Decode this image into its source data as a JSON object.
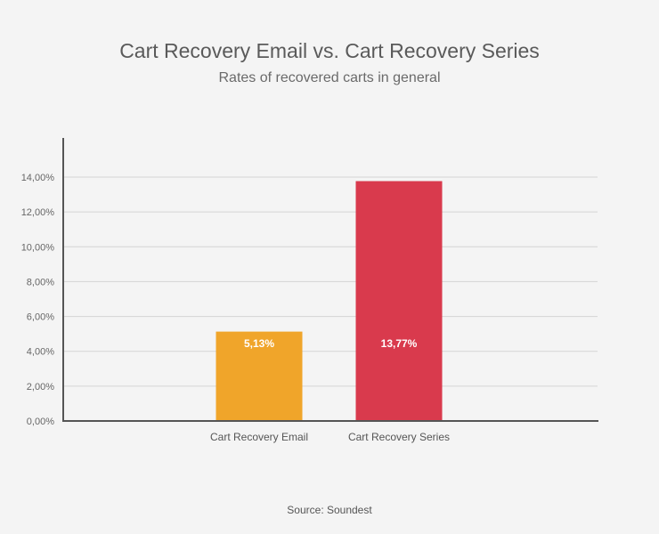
{
  "chart_data": {
    "type": "bar",
    "title": "Cart Recovery Email vs. Cart Recovery Series",
    "subtitle": "Rates of recovered carts in general",
    "categories": [
      "Cart Recovery Email",
      "Cart Recovery Series"
    ],
    "values": [
      5.13,
      13.77
    ],
    "data_labels": [
      "5,13%",
      "13,77%"
    ],
    "colors": [
      "#f0a52a",
      "#d93a4d"
    ],
    "ylim": [
      0,
      14
    ],
    "yticks": [
      0,
      2,
      4,
      6,
      8,
      10,
      12,
      14
    ],
    "ytick_labels": [
      "0,00%",
      "2,00%",
      "4,00%",
      "6,00%",
      "8,00%",
      "10,00%",
      "12,00%",
      "14,00%"
    ],
    "grid": true,
    "legend": "none",
    "source": "Source: Soundest"
  }
}
